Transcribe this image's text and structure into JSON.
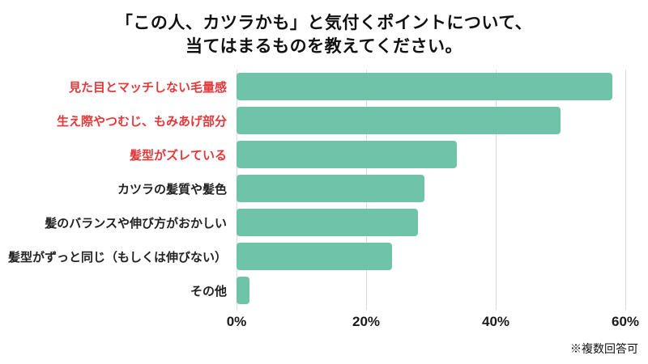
{
  "chart_data": {
    "type": "bar",
    "orientation": "horizontal",
    "title_lines": [
      "「この人、カツラかも」と気付くポイントについて、",
      "当てはまるものを教えてください。"
    ],
    "categories": [
      "見た目とマッチしない毛量感",
      "生え際やつむじ、もみあげ部分",
      "髪型がズレている",
      "カツラの髪質や髪色",
      "髪のバランスや伸び方がおかしい",
      "髪型がずっと同じ（もしくは伸びない）",
      "その他"
    ],
    "values": [
      58,
      50,
      34,
      29,
      28,
      24,
      2
    ],
    "emphasized": [
      true,
      true,
      true,
      false,
      false,
      false,
      false
    ],
    "xlim": [
      0,
      62.5
    ],
    "xticks": [
      "0%",
      "20%",
      "40%",
      "60%"
    ],
    "xtick_values": [
      0,
      20,
      40,
      60
    ],
    "grid": true,
    "legend": "none",
    "bar_color": "#6fc3a9",
    "emphasis_color": "#e23939",
    "label_color": "#222222",
    "gridline_color": "#dcdcdc",
    "note": "※複数回答可"
  }
}
